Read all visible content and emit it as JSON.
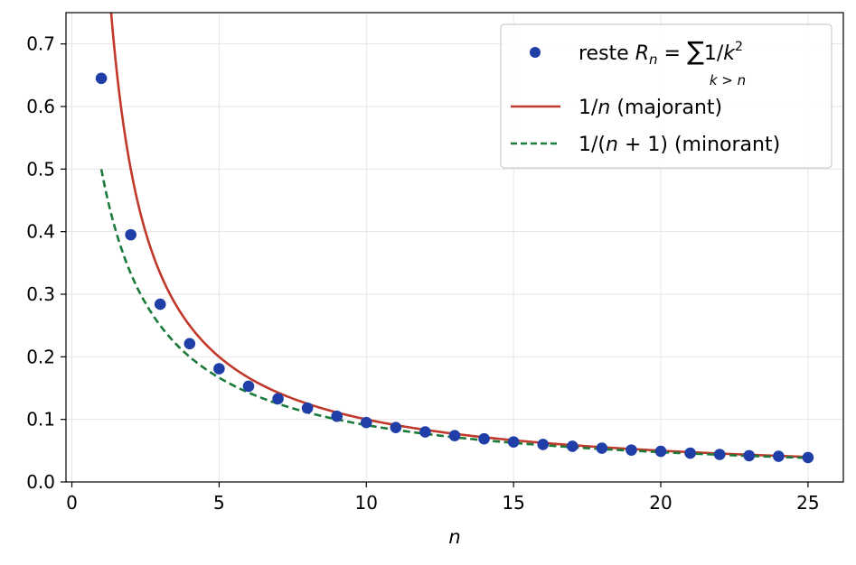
{
  "chart_data": {
    "type": "line",
    "xlabel": "n",
    "ylabel": "",
    "xlim": [
      -0.2,
      26.2
    ],
    "ylim": [
      0.0,
      0.75
    ],
    "xticks": [
      "0",
      "5",
      "10",
      "15",
      "20",
      "25"
    ],
    "yticks": [
      "0.0",
      "0.1",
      "0.2",
      "0.3",
      "0.4",
      "0.5",
      "0.6",
      "0.7"
    ],
    "grid": true,
    "legend_position": "top-right",
    "series": [
      {
        "name": "reste",
        "legend": {
          "prefix": "reste ",
          "r_letter": "R",
          "r_sub": "n",
          "eq": " = ",
          "sum": "∑",
          "sum_sub": "k > n",
          "one_over": "1/",
          "k_letter": "k",
          "k_exp": "2"
        },
        "kind": "scatter",
        "color": "#1f3ea8",
        "x": [
          1,
          2,
          3,
          4,
          5,
          6,
          7,
          8,
          9,
          10,
          11,
          12,
          13,
          14,
          15,
          16,
          17,
          18,
          19,
          20,
          21,
          22,
          23,
          24,
          25
        ],
        "y": [
          0.645,
          0.395,
          0.284,
          0.221,
          0.181,
          0.153,
          0.133,
          0.118,
          0.105,
          0.095,
          0.087,
          0.08,
          0.074,
          0.069,
          0.064,
          0.06,
          0.057,
          0.054,
          0.051,
          0.049,
          0.046,
          0.044,
          0.042,
          0.041,
          0.039
        ]
      },
      {
        "name": "1/n (majorant)",
        "legend": {
          "a": "1/",
          "b": "n",
          "c": " (majorant)"
        },
        "kind": "line",
        "formula": "1/n",
        "x_range": [
          1,
          25
        ],
        "color": "#c0392b"
      },
      {
        "name": "1/(n+1) (minorant)",
        "legend": {
          "a": "1/(",
          "b": "n",
          "c": " + 1) (minorant)"
        },
        "kind": "dashed-line",
        "formula": "1/(n+1)",
        "x_range": [
          1,
          25
        ],
        "color": "#1a7a3a"
      }
    ]
  }
}
